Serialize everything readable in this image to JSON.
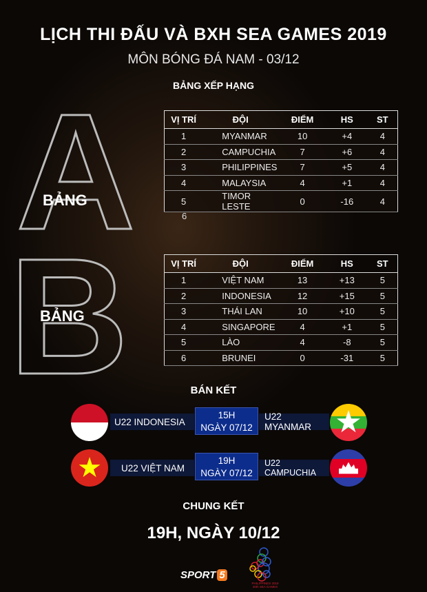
{
  "header": {
    "title": "LỊCH THI ĐẤU VÀ BXH SEA GAMES 2019",
    "subtitle": "MÔN BÓNG ĐÁ NAM - 03/12",
    "standings_label": "BẢNG XẾP HẠNG"
  },
  "columns": [
    "VỊ TRÍ",
    "ĐỘI",
    "ĐIỂM",
    "HS",
    "ST"
  ],
  "group_a": {
    "letter": "A",
    "label": "BẢNG",
    "rows": [
      [
        "1",
        "MYANMAR",
        "10",
        "+4",
        "4"
      ],
      [
        "2",
        "CAMPUCHIA",
        "7",
        "+6",
        "4"
      ],
      [
        "3",
        "PHILIPPINES",
        "7",
        "+5",
        "4"
      ],
      [
        "4",
        "MALAYSIA",
        "4",
        "+1",
        "4"
      ],
      [
        "5",
        "TIMOR LESTE",
        "0",
        "-16",
        "4"
      ]
    ],
    "extra_rank": "6"
  },
  "group_b": {
    "letter": "B",
    "label": "BẢNG",
    "rows": [
      [
        "1",
        "VIỆT NAM",
        "13",
        "+13",
        "5"
      ],
      [
        "2",
        "INDONESIA",
        "12",
        "+15",
        "5"
      ],
      [
        "3",
        "THÁI LAN",
        "10",
        "+10",
        "5"
      ],
      [
        "4",
        "SINGAPORE",
        "4",
        "+1",
        "5"
      ],
      [
        "5",
        "LÀO",
        "4",
        "-8",
        "5"
      ],
      [
        "6",
        "BRUNEI",
        "0",
        "-31",
        "5"
      ]
    ]
  },
  "semifinal": {
    "label": "BÁN KẾT",
    "matches": [
      {
        "home": "U22 INDONESIA",
        "time": "15H",
        "date": "NGÀY 07/12",
        "away": "U22 MYANMAR"
      },
      {
        "home": "U22 VIỆT NAM",
        "time": "19H",
        "date": "NGÀY 07/12",
        "away": "U22 CAMPUCHIA"
      }
    ]
  },
  "final": {
    "label": "CHUNG KẾT",
    "datetime": "19H, NGÀY 10/12"
  },
  "footer": {
    "brand": "SPORT5",
    "logo_text": "PHILIPPINES 2019 30th SEA GAMES"
  },
  "colors": {
    "time_box": "#0d2d8c",
    "team_bar": "#0e1838",
    "sport5_orange": "#f47920"
  }
}
